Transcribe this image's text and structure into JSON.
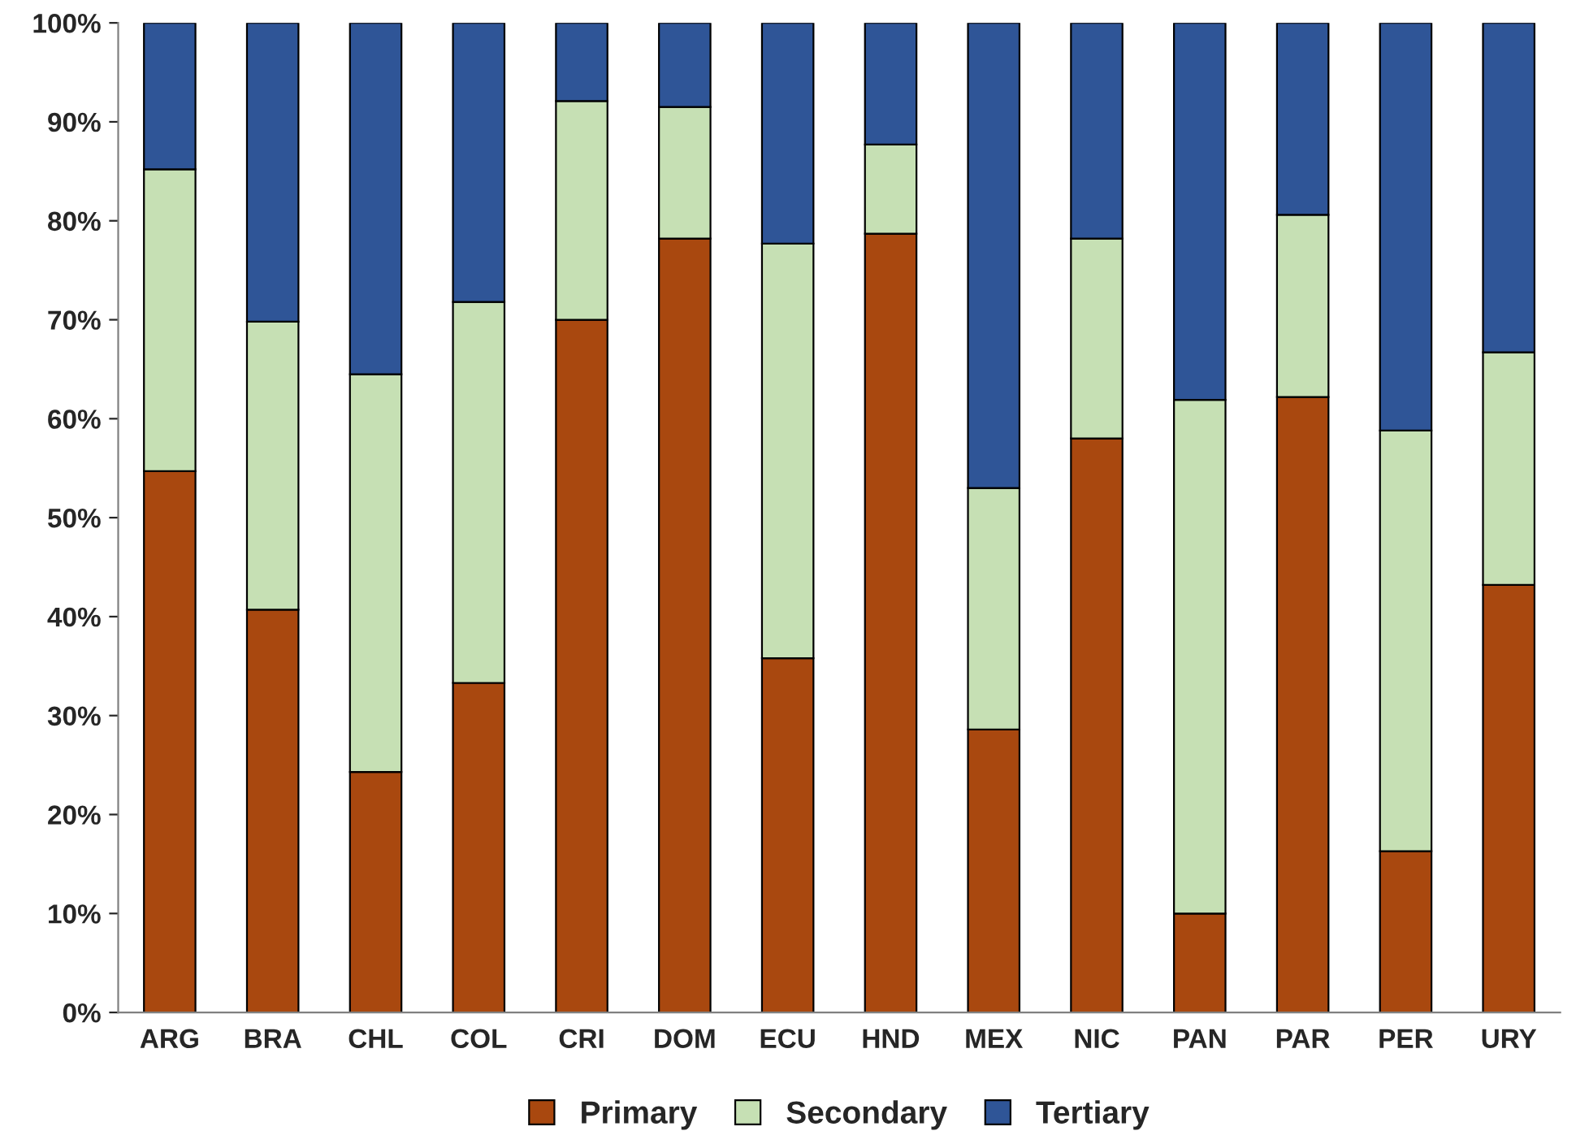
{
  "chart_data": {
    "type": "bar",
    "stacked": true,
    "categories": [
      "ARG",
      "BRA",
      "CHL",
      "COL",
      "CRI",
      "DOM",
      "ECU",
      "HND",
      "MEX",
      "NIC",
      "PAN",
      "PAR",
      "PER",
      "URY"
    ],
    "series": [
      {
        "name": "Primary",
        "color": "#a9480f",
        "values": [
          54.7,
          40.7,
          24.3,
          33.3,
          70.0,
          78.2,
          35.8,
          78.7,
          28.6,
          58.0,
          10.0,
          62.2,
          16.3,
          43.2
        ]
      },
      {
        "name": "Secondary",
        "color": "#c6e0b4",
        "values": [
          30.5,
          29.1,
          40.2,
          38.5,
          22.1,
          13.3,
          41.9,
          9.0,
          24.4,
          20.2,
          51.9,
          18.4,
          42.5,
          23.5
        ]
      },
      {
        "name": "Tertiary",
        "color": "#2f5597",
        "values": [
          14.8,
          30.2,
          35.5,
          28.2,
          7.9,
          8.5,
          22.3,
          12.3,
          47.0,
          21.8,
          38.1,
          19.4,
          41.2,
          33.3
        ]
      }
    ],
    "ylim": [
      0,
      100
    ],
    "yticks": [
      {
        "value": 0,
        "label": "0%"
      },
      {
        "value": 10,
        "label": "10%"
      },
      {
        "value": 20,
        "label": "20%"
      },
      {
        "value": 30,
        "label": "30%"
      },
      {
        "value": 40,
        "label": "40%"
      },
      {
        "value": 50,
        "label": "50%"
      },
      {
        "value": 60,
        "label": "60%"
      },
      {
        "value": 70,
        "label": "70%"
      },
      {
        "value": 80,
        "label": "80%"
      },
      {
        "value": 90,
        "label": "90%"
      },
      {
        "value": 100,
        "label": "100%"
      }
    ],
    "grid": false,
    "legend": "bottom"
  }
}
